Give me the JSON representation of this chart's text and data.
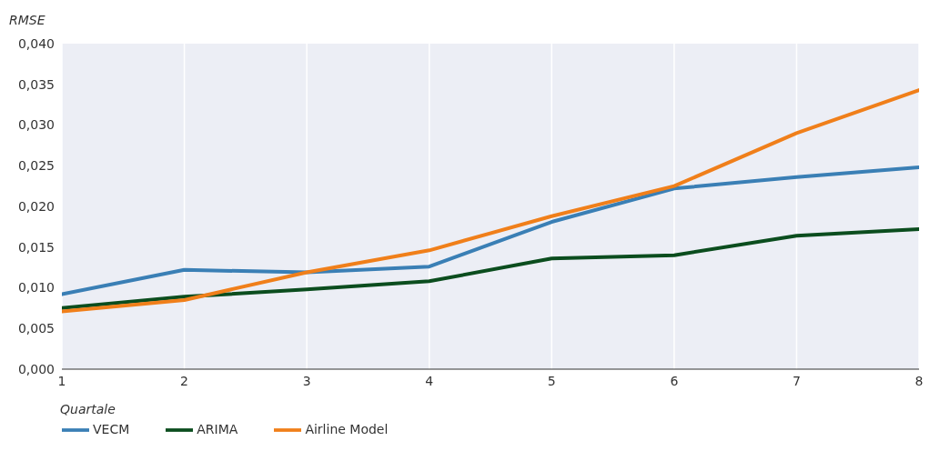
{
  "chart_data": {
    "type": "line",
    "ylabel": "RMSE",
    "xlabel": "Quartale",
    "x": [
      1,
      2,
      3,
      4,
      5,
      6,
      7,
      8
    ],
    "series": [
      {
        "name": "VECM",
        "color": "#3a7fb5",
        "values": [
          0.0092,
          0.0122,
          0.0119,
          0.0126,
          0.0181,
          0.0222,
          0.0236,
          0.0248
        ]
      },
      {
        "name": "ARIMA",
        "color": "#0b4d1e",
        "values": [
          0.0075,
          0.0089,
          0.0098,
          0.0108,
          0.0136,
          0.014,
          0.0164,
          0.0172
        ]
      },
      {
        "name": "Airline Model",
        "color": "#f07f1a",
        "values": [
          0.0071,
          0.0085,
          0.0119,
          0.0146,
          0.0188,
          0.0225,
          0.029,
          0.0343
        ]
      }
    ],
    "xlim": [
      1,
      8
    ],
    "xticks": [
      1,
      2,
      3,
      4,
      5,
      6,
      7,
      8
    ],
    "ylim": [
      0,
      0.04
    ],
    "yticks": [
      {
        "value": 0,
        "label": "0,000"
      },
      {
        "value": 0.005,
        "label": "0,005"
      },
      {
        "value": 0.01,
        "label": "0,010"
      },
      {
        "value": 0.015,
        "label": "0,015"
      },
      {
        "value": 0.02,
        "label": "0,020"
      },
      {
        "value": 0.025,
        "label": "0,025"
      },
      {
        "value": 0.03,
        "label": "0,030"
      },
      {
        "value": 0.035,
        "label": "0,035"
      },
      {
        "value": 0.04,
        "label": "0,040"
      }
    ],
    "grid": true,
    "legend": "bottom left",
    "marker": "none",
    "line_style": "solid"
  }
}
